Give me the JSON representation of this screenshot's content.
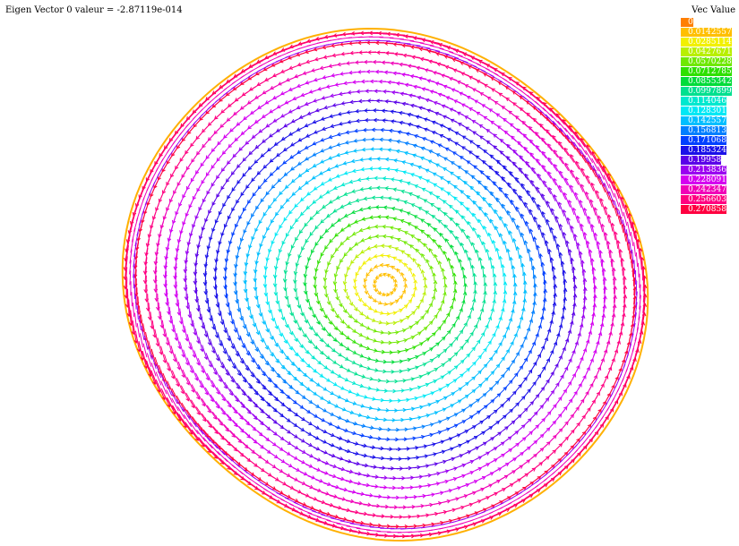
{
  "title": "Eigen Vector 0 valeur = -2.87119e-014",
  "chart_data": {
    "type": "vector-field",
    "title": "Eigen Vector 0 valeur = -2.87119e-014",
    "legend_title": "Vec Value",
    "legend_placement": "top-right",
    "grid": false,
    "legend": [
      {
        "label": "0",
        "color": "#ff7f00"
      },
      {
        "label": "0.0142557",
        "color": "#ffbf00"
      },
      {
        "label": "0.0285114",
        "color": "#f2f000"
      },
      {
        "label": "0.0427671",
        "color": "#b8ef00"
      },
      {
        "label": "0.0570228",
        "color": "#6fe800"
      },
      {
        "label": "0.0712785",
        "color": "#2ee000"
      },
      {
        "label": "0.0855342",
        "color": "#00dc3a"
      },
      {
        "label": "0.0997899",
        "color": "#00e08f"
      },
      {
        "label": "0.114046",
        "color": "#00e8cf"
      },
      {
        "label": "0.128301",
        "color": "#00e8f5"
      },
      {
        "label": "0.142557",
        "color": "#00bfff"
      },
      {
        "label": "0.156813",
        "color": "#007fff"
      },
      {
        "label": "0.171068",
        "color": "#0040ff"
      },
      {
        "label": "0.185324",
        "color": "#1a10e8"
      },
      {
        "label": "0.19958",
        "color": "#5a00e8"
      },
      {
        "label": "0.213836",
        "color": "#9a00f0"
      },
      {
        "label": "0.228091",
        "color": "#d400f0"
      },
      {
        "label": "0.242347",
        "color": "#f000b8"
      },
      {
        "label": "0.256603",
        "color": "#ff0080"
      },
      {
        "label": "0.270858",
        "color": "#ff0040"
      }
    ],
    "min_value": 0,
    "max_value": 0.270858,
    "rotation": "counter-clockwise",
    "boundary_color": "#ffb000"
  }
}
